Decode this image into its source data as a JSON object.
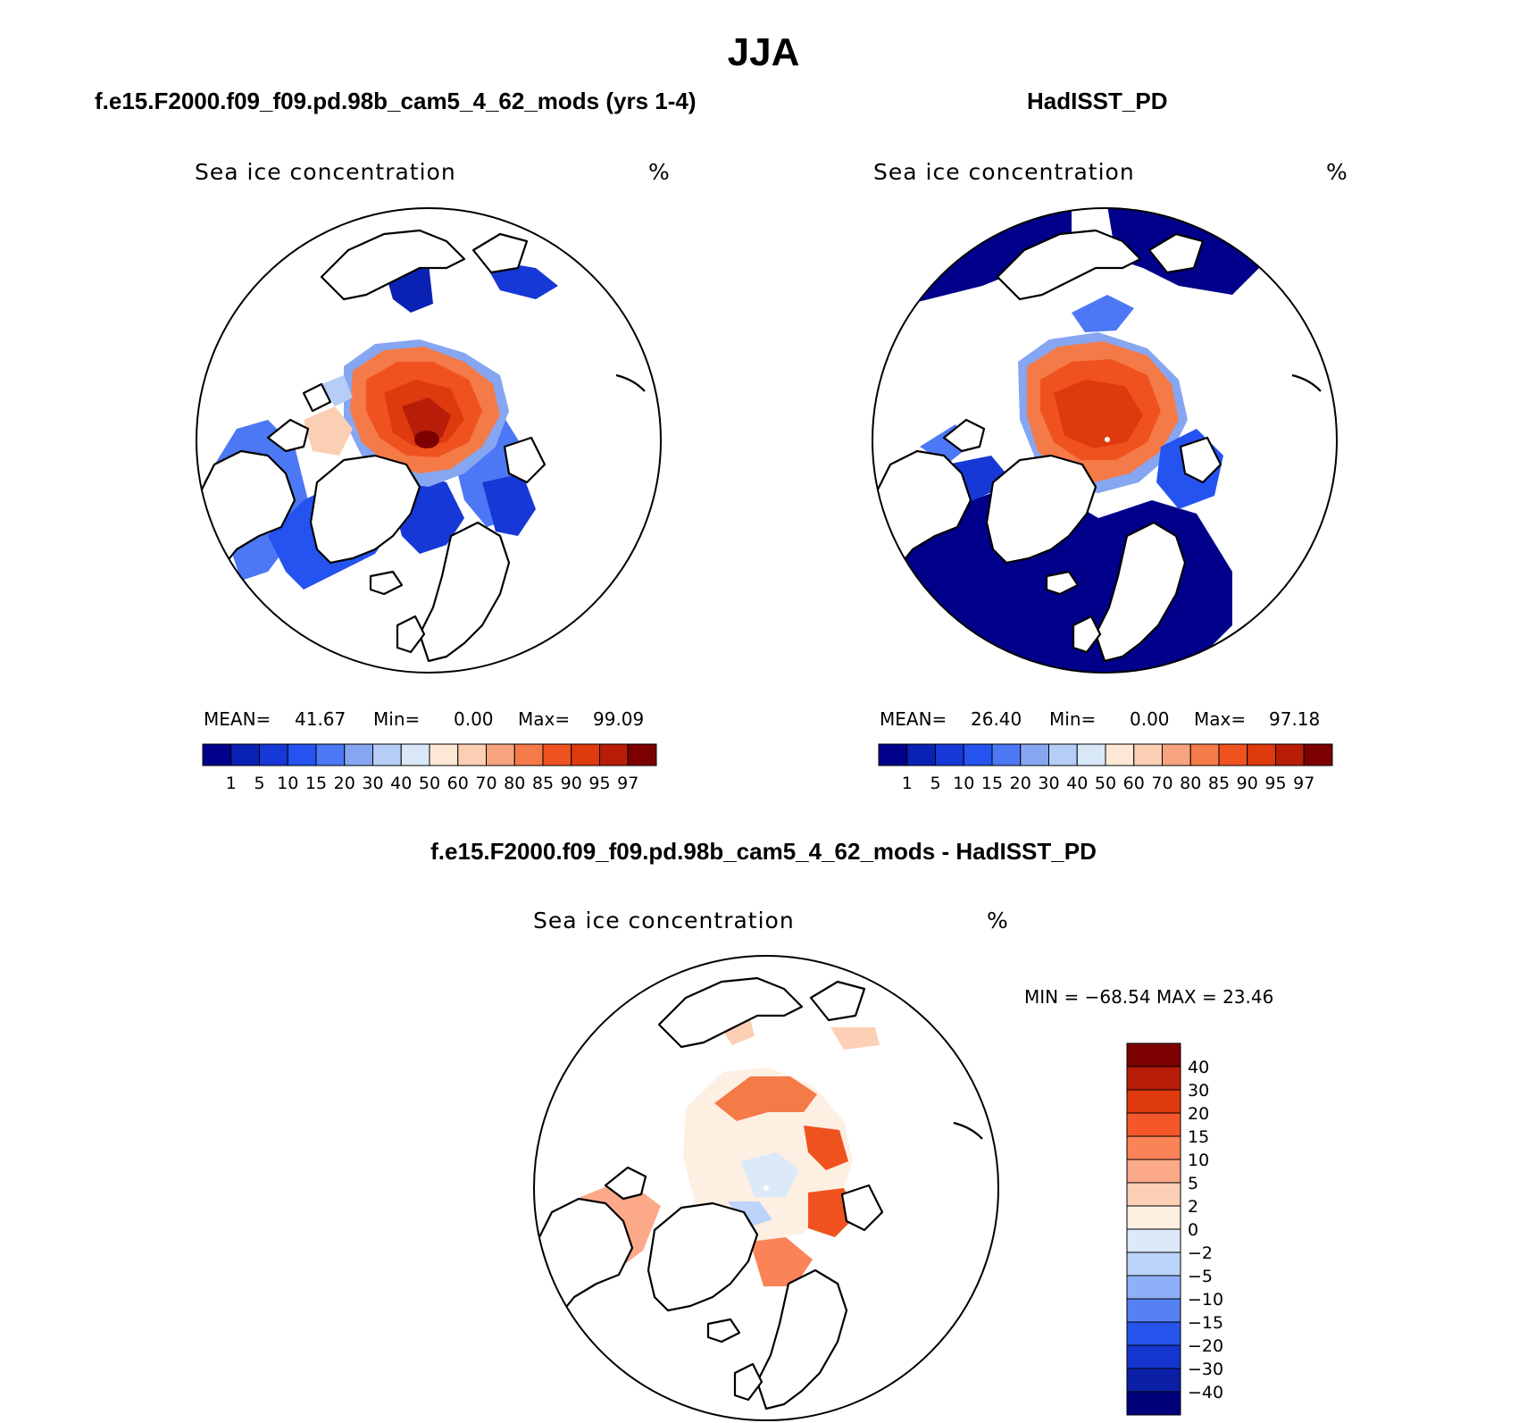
{
  "main_title": "JJA",
  "panels": [
    {
      "title": "f.e15.F2000.f09_f09.pd.98b_cam5_4_62_mods (yrs 1-4)",
      "variable": "Sea ice concentration",
      "units": "%",
      "stats": {
        "mean_label": "MEAN=",
        "mean": "41.67",
        "min_label": "Min=",
        "min": "0.00",
        "max_label": "Max=",
        "max": "99.09"
      }
    },
    {
      "title": "HadISST_PD",
      "variable": "Sea ice concentration",
      "units": "%",
      "stats": {
        "mean_label": "MEAN=",
        "mean": "26.40",
        "min_label": "Min=",
        "min": "0.00",
        "max_label": "Max=",
        "max": "97.18"
      }
    }
  ],
  "abs_colorbar": {
    "labels": [
      "1",
      "5",
      "10",
      "15",
      "20",
      "30",
      "40",
      "50",
      "60",
      "70",
      "80",
      "85",
      "90",
      "95",
      "97"
    ],
    "colors": [
      "#00008b",
      "#0a22b4",
      "#1638d6",
      "#2453f0",
      "#4c78f5",
      "#86a6f2",
      "#b6cdf8",
      "#d9e8f7",
      "#fde8d6",
      "#fbcfb4",
      "#f7a37e",
      "#f47a48",
      "#f0521f",
      "#de3a0e",
      "#b81d07",
      "#7d0000"
    ]
  },
  "diff_panel": {
    "title": "f.e15.F2000.f09_f09.pd.98b_cam5_4_62_mods - HadISST_PD",
    "variable": "Sea ice concentration",
    "units": "%",
    "stats_text": "MIN = −68.54 MAX =   23.46"
  },
  "diff_colorbar": {
    "labels": [
      "40",
      "30",
      "20",
      "15",
      "10",
      "5",
      "2",
      "0",
      "−2",
      "−5",
      "−10",
      "−15",
      "−20",
      "−30",
      "−40"
    ],
    "colors_top_to_bottom": [
      "#7d0000",
      "#b81d07",
      "#de3a0e",
      "#f4582a",
      "#fa8358",
      "#fca98a",
      "#fdd0b6",
      "#fdefe2",
      "#dbe9f8",
      "#bcd3fa",
      "#8fb0f8",
      "#5581f3",
      "#2655ee",
      "#1436cf",
      "#0a1fa6",
      "#00007a"
    ]
  },
  "map": {
    "ocean_color": "#ffffff",
    "coast_color": "#000000",
    "features": [
      "arctic-ocean",
      "greenland",
      "baffin-bay",
      "hudson-bay",
      "bering-strait",
      "scandinavia",
      "iceland",
      "svalbard",
      "kara-sea",
      "okhotsk-sea"
    ]
  }
}
